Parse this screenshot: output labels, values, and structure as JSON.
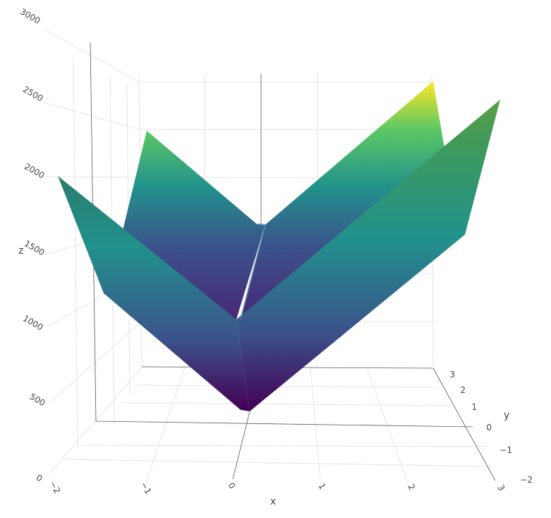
{
  "chart_data": {
    "type": "surface",
    "colorscale": "viridis",
    "colors": [
      "#440154",
      "#3b528b",
      "#21918c",
      "#5ec962",
      "#fde725"
    ],
    "xlabel": "x",
    "ylabel": "y",
    "zlabel": "z",
    "x_ticks": [
      "−2",
      "−1",
      "0",
      "1",
      "2",
      "3"
    ],
    "y_ticks": [
      "−2",
      "−1",
      "0",
      "1",
      "2",
      "3"
    ],
    "z_ticks": [
      "0",
      "500",
      "1000",
      "1500",
      "2000",
      "2500",
      "3000"
    ],
    "xlim": [
      -2,
      3
    ],
    "ylim": [
      -2,
      3
    ],
    "zlim": [
      0,
      3000
    ],
    "grid": true,
    "surface_points": [
      {
        "x": -2,
        "y": -2,
        "z": 2000
      },
      {
        "x": -2,
        "y": 3,
        "z": 2300
      },
      {
        "x": 0,
        "y": -2,
        "z": 1000
      },
      {
        "x": 0,
        "y": 3,
        "z": 1300
      },
      {
        "x": 3,
        "y": -2,
        "z": 2500
      },
      {
        "x": 3,
        "y": 3,
        "z": 2800
      }
    ]
  }
}
